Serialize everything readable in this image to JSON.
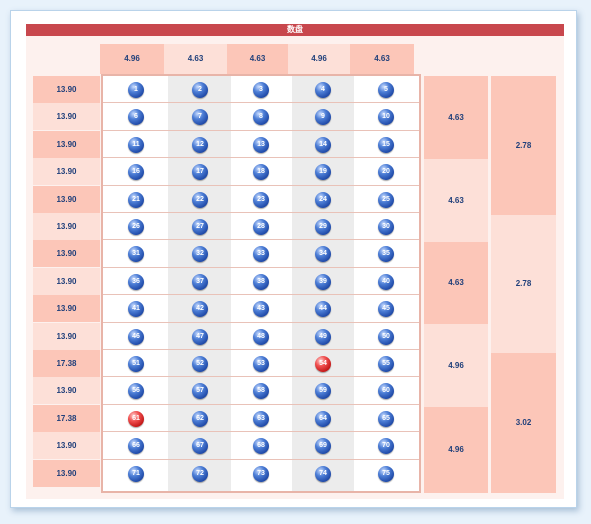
{
  "title": "数盘",
  "column_headers": [
    "4.96",
    "4.63",
    "4.63",
    "4.96",
    "4.63"
  ],
  "row_labels": [
    "13.90",
    "13.90",
    "13.90",
    "13.90",
    "13.90",
    "13.90",
    "13.90",
    "13.90",
    "13.90",
    "13.90",
    "17.38",
    "13.90",
    "17.38",
    "13.90",
    "13.90"
  ],
  "balls": [
    [
      "1",
      "2",
      "3",
      "4",
      "5"
    ],
    [
      "6",
      "7",
      "8",
      "9",
      "10"
    ],
    [
      "11",
      "12",
      "13",
      "14",
      "15"
    ],
    [
      "16",
      "17",
      "18",
      "19",
      "20"
    ],
    [
      "21",
      "22",
      "23",
      "24",
      "25"
    ],
    [
      "26",
      "27",
      "28",
      "29",
      "30"
    ],
    [
      "31",
      "32",
      "33",
      "34",
      "35"
    ],
    [
      "36",
      "37",
      "38",
      "39",
      "40"
    ],
    [
      "41",
      "42",
      "43",
      "44",
      "45"
    ],
    [
      "46",
      "47",
      "48",
      "49",
      "50"
    ],
    [
      "51",
      "52",
      "53",
      "54",
      "55"
    ],
    [
      "56",
      "57",
      "58",
      "59",
      "60"
    ],
    [
      "61",
      "62",
      "63",
      "64",
      "65"
    ],
    [
      "66",
      "67",
      "68",
      "69",
      "70"
    ],
    [
      "71",
      "72",
      "73",
      "74",
      "75"
    ]
  ],
  "red_balls": [
    "54",
    "61"
  ],
  "group3": [
    "4.63",
    "4.63",
    "4.63",
    "4.96",
    "4.96"
  ],
  "group5": [
    "2.78",
    "2.78",
    "3.02"
  ],
  "colors": {
    "title_bar": "#c8474d",
    "header_dark": "#fcc6b8",
    "header_light": "#fde0d8",
    "text": "#1f3f7a",
    "ball_blue": "#2f5fc0",
    "ball_red": "#d42020"
  }
}
